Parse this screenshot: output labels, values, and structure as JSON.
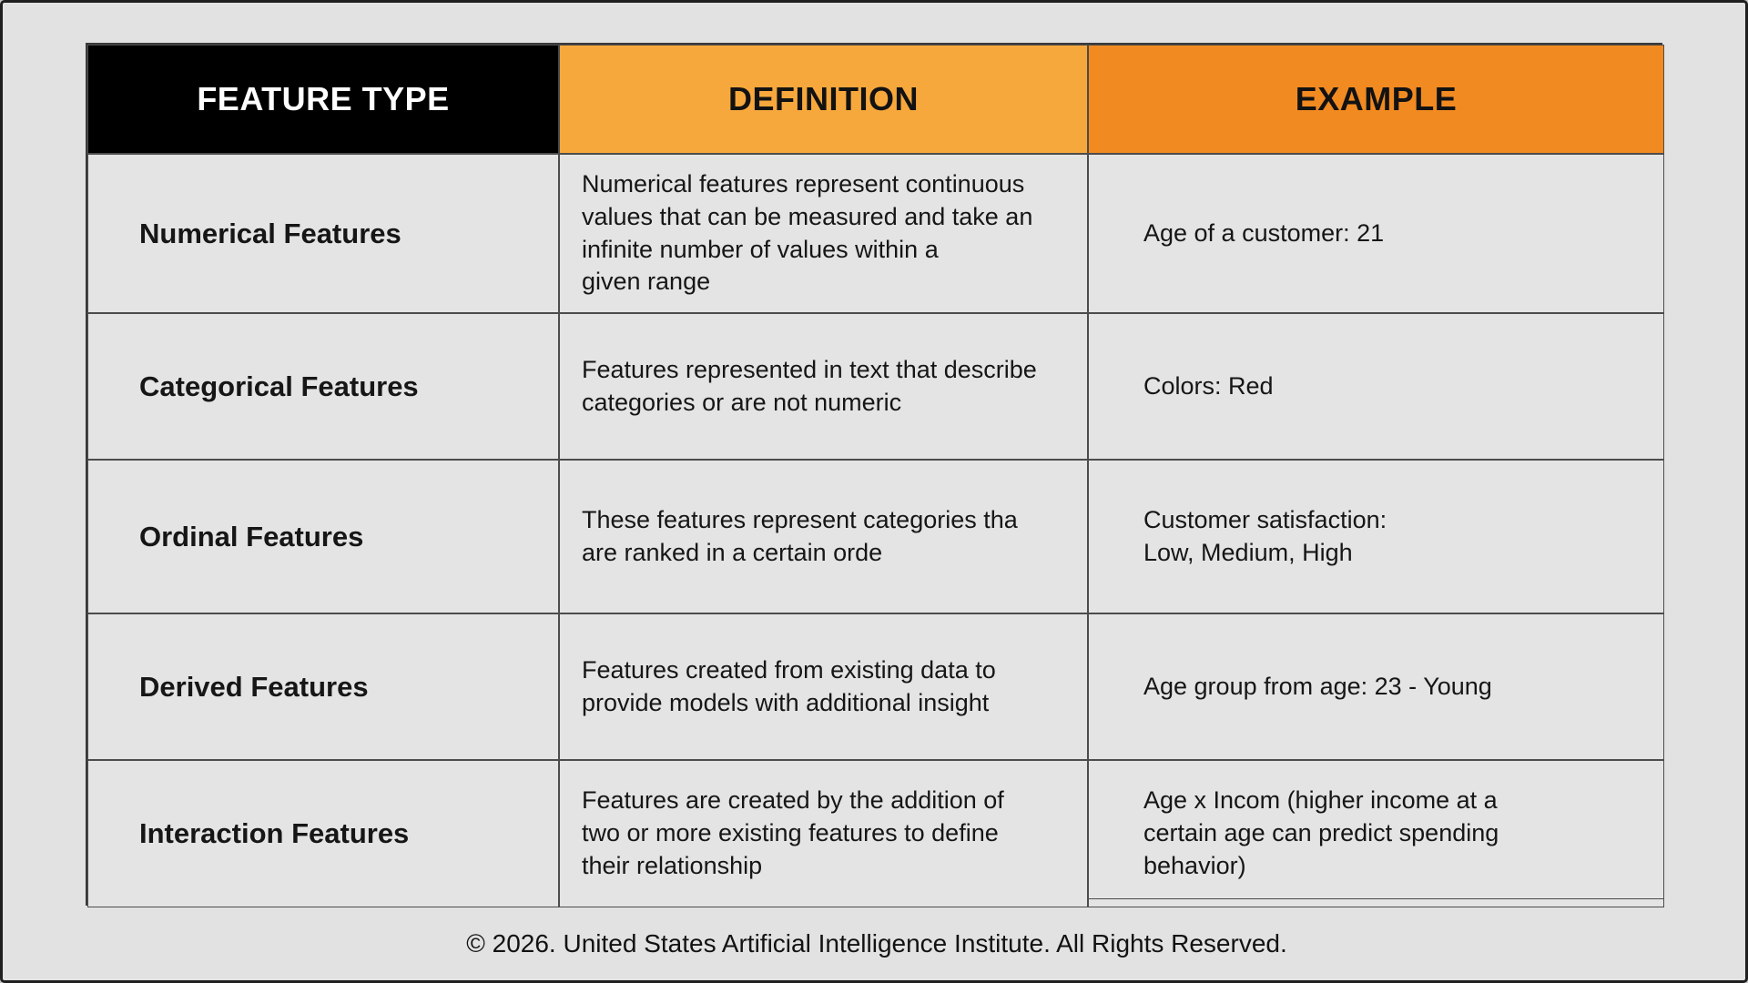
{
  "table": {
    "headers": {
      "feature_type": "FEATURE TYPE",
      "definition": "DEFINITION",
      "example": "EXAMPLE"
    },
    "header_colors": {
      "feature_type_bg": "#000000",
      "feature_type_fg": "#ffffff",
      "definition_bg": "#f7a83c",
      "example_bg": "#f18a21"
    },
    "rows": [
      {
        "feature_type": "Numerical Features",
        "definition": "Numerical features represent continuous\nvalues that can be measured and take an\ninfinite number of values within a\ngiven range",
        "example": "Age of a customer: 21"
      },
      {
        "feature_type": "Categorical Features",
        "definition": "Features represented in text that describe\ncategories or are not numeric",
        "example": "Colors: Red"
      },
      {
        "feature_type": "Ordinal Features",
        "definition": "These features represent categories tha\nare ranked in a certain orde",
        "example": "Customer satisfaction:\nLow, Medium, High"
      },
      {
        "feature_type": "Derived Features",
        "definition": "Features created from existing data to\nprovide models with additional insight",
        "example": "Age group from age: 23 - Young"
      },
      {
        "feature_type": "Interaction Features",
        "definition": "Features are created by the addition of\ntwo or more existing features to define\ntheir relationship",
        "example": "Age x Incom  (higher income at a\ncertain age can predict spending\nbehavior)"
      }
    ]
  },
  "footer": {
    "text": "© 2026. United States Artificial Intelligence Institute. All Rights Reserved."
  }
}
